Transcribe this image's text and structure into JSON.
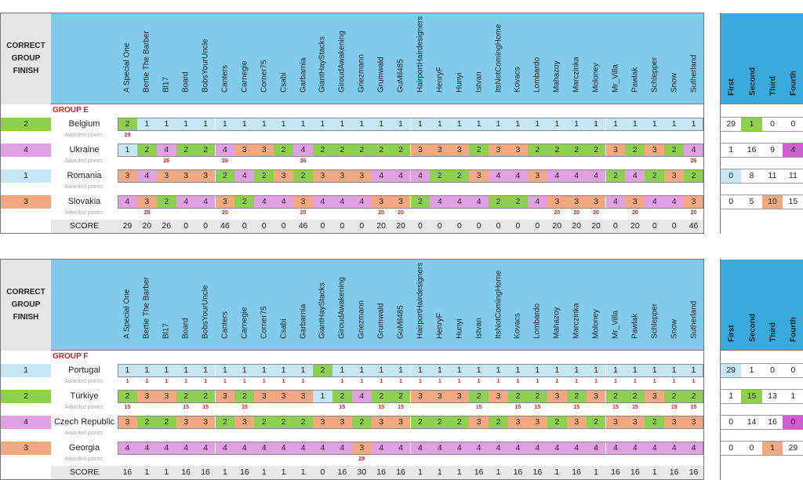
{
  "header": {
    "correct_label": "CORRECT GROUP FINISH",
    "players": [
      "A Special One",
      "Bertie The Barber",
      "Bl17",
      "Board",
      "BobsYourUncle",
      "Canters",
      "Carnegie",
      "Corner75",
      "Csabi",
      "Garbarnia",
      "GiantHayStacks",
      "GiroudAwakening",
      "Griezmann",
      "Grumwald",
      "GuMil485",
      "HairportHairdesigners",
      "HenryF",
      "Hunyi",
      "Istvan",
      "ItsNotComingHome",
      "Kovacs",
      "Lombardo",
      "Mahazoy",
      "Marczinka",
      "Moloney",
      "Mr_Villa",
      "Pawlak",
      "Schlepper",
      "Snow",
      "Sutherland"
    ],
    "summary_columns": [
      "First",
      "Second",
      "Third",
      "Fourth"
    ],
    "awarded_label": "Awarded points:",
    "score_label": "SCORE"
  },
  "colors": {
    "pos1": "#c6e7f5",
    "pos2": "#8ed150",
    "pos3": "#f2a982",
    "pos4": "#e1a0e1",
    "pos4_strong": "#cc5fcc",
    "header_blue": "#82cbec",
    "summary_blue": "#3aaadc",
    "award_red": "#d42020"
  },
  "groups": [
    {
      "label": "GROUP E",
      "countries": [
        {
          "name": "Belgium",
          "finish": "2",
          "predictions": [
            2,
            1,
            1,
            1,
            1,
            1,
            1,
            1,
            1,
            1,
            1,
            1,
            1,
            1,
            1,
            1,
            1,
            1,
            1,
            1,
            1,
            1,
            1,
            1,
            1,
            1,
            1,
            1,
            1,
            1
          ],
          "awarded": [
            "29",
            "",
            "",
            "",
            "",
            "",
            "",
            "",
            "",
            "",
            "",
            "",
            "",
            "",
            "",
            "",
            "",
            "",
            "",
            "",
            "",
            "",
            "",
            "",
            "",
            "",
            "",
            "",
            "",
            ""
          ],
          "summary": [
            "29",
            "1",
            "0",
            "0"
          ]
        },
        {
          "name": "Ukraine",
          "finish": "4",
          "predictions": [
            1,
            2,
            4,
            2,
            2,
            4,
            3,
            3,
            2,
            4,
            2,
            2,
            2,
            2,
            2,
            3,
            3,
            3,
            2,
            3,
            3,
            2,
            2,
            2,
            2,
            3,
            2,
            3,
            2,
            4
          ],
          "awarded": [
            "",
            "",
            "26",
            "",
            "",
            "26",
            "",
            "",
            "",
            "26",
            "",
            "",
            "",
            "",
            "",
            "",
            "",
            "",
            "",
            "",
            "",
            "",
            "",
            "",
            "",
            "",
            "",
            "",
            "",
            "26"
          ],
          "summary": [
            "1",
            "16",
            "9",
            "4"
          ]
        },
        {
          "name": "Romania",
          "finish": "1",
          "predictions": [
            3,
            4,
            3,
            3,
            3,
            2,
            4,
            2,
            3,
            2,
            3,
            3,
            3,
            4,
            4,
            4,
            2,
            2,
            3,
            4,
            4,
            3,
            4,
            4,
            4,
            2,
            4,
            2,
            3,
            2
          ],
          "awarded": [
            "",
            "",
            "",
            "",
            "",
            "",
            "",
            "",
            "",
            "",
            "",
            "",
            "",
            "",
            "",
            "",
            "",
            "",
            "",
            "",
            "",
            "",
            "",
            "",
            "",
            "",
            "",
            "",
            "",
            ""
          ],
          "summary": [
            "0",
            "8",
            "11",
            "11"
          ]
        },
        {
          "name": "Slovakia",
          "finish": "3",
          "predictions": [
            4,
            3,
            2,
            4,
            4,
            3,
            2,
            4,
            4,
            3,
            4,
            4,
            4,
            3,
            3,
            2,
            4,
            4,
            4,
            2,
            2,
            4,
            3,
            3,
            3,
            4,
            3,
            4,
            4,
            3
          ],
          "awarded": [
            "",
            "20",
            "",
            "",
            "",
            "20",
            "",
            "",
            "",
            "20",
            "",
            "",
            "",
            "20",
            "20",
            "",
            "",
            "",
            "",
            "",
            "",
            "",
            "20",
            "20",
            "20",
            "",
            "20",
            "",
            "",
            "20"
          ],
          "summary": [
            "0",
            "5",
            "10",
            "15"
          ]
        }
      ],
      "scores": [
        "29",
        "20",
        "26",
        "0",
        "0",
        "46",
        "0",
        "0",
        "0",
        "46",
        "0",
        "0",
        "0",
        "20",
        "20",
        "0",
        "0",
        "0",
        "0",
        "0",
        "0",
        "0",
        "20",
        "20",
        "20",
        "0",
        "20",
        "0",
        "0",
        "46"
      ]
    },
    {
      "label": "GROUP F",
      "countries": [
        {
          "name": "Portugal",
          "finish": "1",
          "predictions": [
            1,
            1,
            1,
            1,
            1,
            1,
            1,
            1,
            1,
            1,
            2,
            1,
            1,
            1,
            1,
            1,
            1,
            1,
            1,
            1,
            1,
            1,
            1,
            1,
            1,
            1,
            1,
            1,
            1,
            1
          ],
          "awarded": [
            "1",
            "1",
            "1",
            "1",
            "1",
            "1",
            "1",
            "1",
            "1",
            "1",
            "",
            "1",
            "1",
            "1",
            "1",
            "1",
            "1",
            "1",
            "1",
            "1",
            "1",
            "1",
            "1",
            "1",
            "1",
            "1",
            "1",
            "1",
            "1",
            "1"
          ],
          "summary": [
            "29",
            "1",
            "0",
            "0"
          ]
        },
        {
          "name": "Türkiye",
          "finish": "2",
          "predictions": [
            2,
            3,
            3,
            2,
            2,
            3,
            2,
            3,
            3,
            3,
            1,
            2,
            4,
            2,
            2,
            3,
            3,
            3,
            2,
            3,
            2,
            2,
            3,
            2,
            3,
            2,
            2,
            3,
            2,
            2
          ],
          "awarded": [
            "15",
            "",
            "",
            "15",
            "15",
            "",
            "15",
            "",
            "",
            "",
            "",
            "15",
            "",
            "15",
            "15",
            "",
            "",
            "",
            "15",
            "",
            "15",
            "15",
            "",
            "15",
            "",
            "15",
            "15",
            "",
            "15",
            "15"
          ],
          "summary": [
            "1",
            "15",
            "13",
            "1"
          ]
        },
        {
          "name": "Czech Republic",
          "finish": "4",
          "predictions": [
            3,
            2,
            2,
            3,
            3,
            2,
            3,
            2,
            2,
            2,
            3,
            3,
            2,
            3,
            3,
            2,
            2,
            2,
            3,
            2,
            3,
            3,
            2,
            3,
            2,
            3,
            3,
            2,
            3,
            3
          ],
          "awarded": [
            "",
            "",
            "",
            "",
            "",
            "",
            "",
            "",
            "",
            "",
            "",
            "",
            "",
            "",
            "",
            "",
            "",
            "",
            "",
            "",
            "",
            "",
            "",
            "",
            "",
            "",
            "",
            "",
            "",
            ""
          ],
          "summary": [
            "0",
            "14",
            "16",
            "0"
          ]
        },
        {
          "name": "Georgia",
          "finish": "3",
          "predictions": [
            4,
            4,
            4,
            4,
            4,
            4,
            4,
            4,
            4,
            4,
            4,
            4,
            3,
            4,
            4,
            4,
            4,
            4,
            4,
            4,
            4,
            4,
            4,
            4,
            4,
            4,
            4,
            4,
            4,
            4
          ],
          "awarded": [
            "",
            "",
            "",
            "",
            "",
            "",
            "",
            "",
            "",
            "",
            "",
            "",
            "29",
            "",
            "",
            "",
            "",
            "",
            "",
            "",
            "",
            "",
            "",
            "",
            "",
            "",
            "",
            "",
            "",
            ""
          ],
          "summary": [
            "0",
            "0",
            "1",
            "29"
          ]
        }
      ],
      "scores": [
        "16",
        "1",
        "1",
        "16",
        "16",
        "1",
        "16",
        "1",
        "1",
        "1",
        "0",
        "16",
        "30",
        "16",
        "16",
        "1",
        "1",
        "1",
        "16",
        "1",
        "16",
        "16",
        "1",
        "16",
        "1",
        "16",
        "16",
        "1",
        "16",
        "16"
      ]
    }
  ]
}
